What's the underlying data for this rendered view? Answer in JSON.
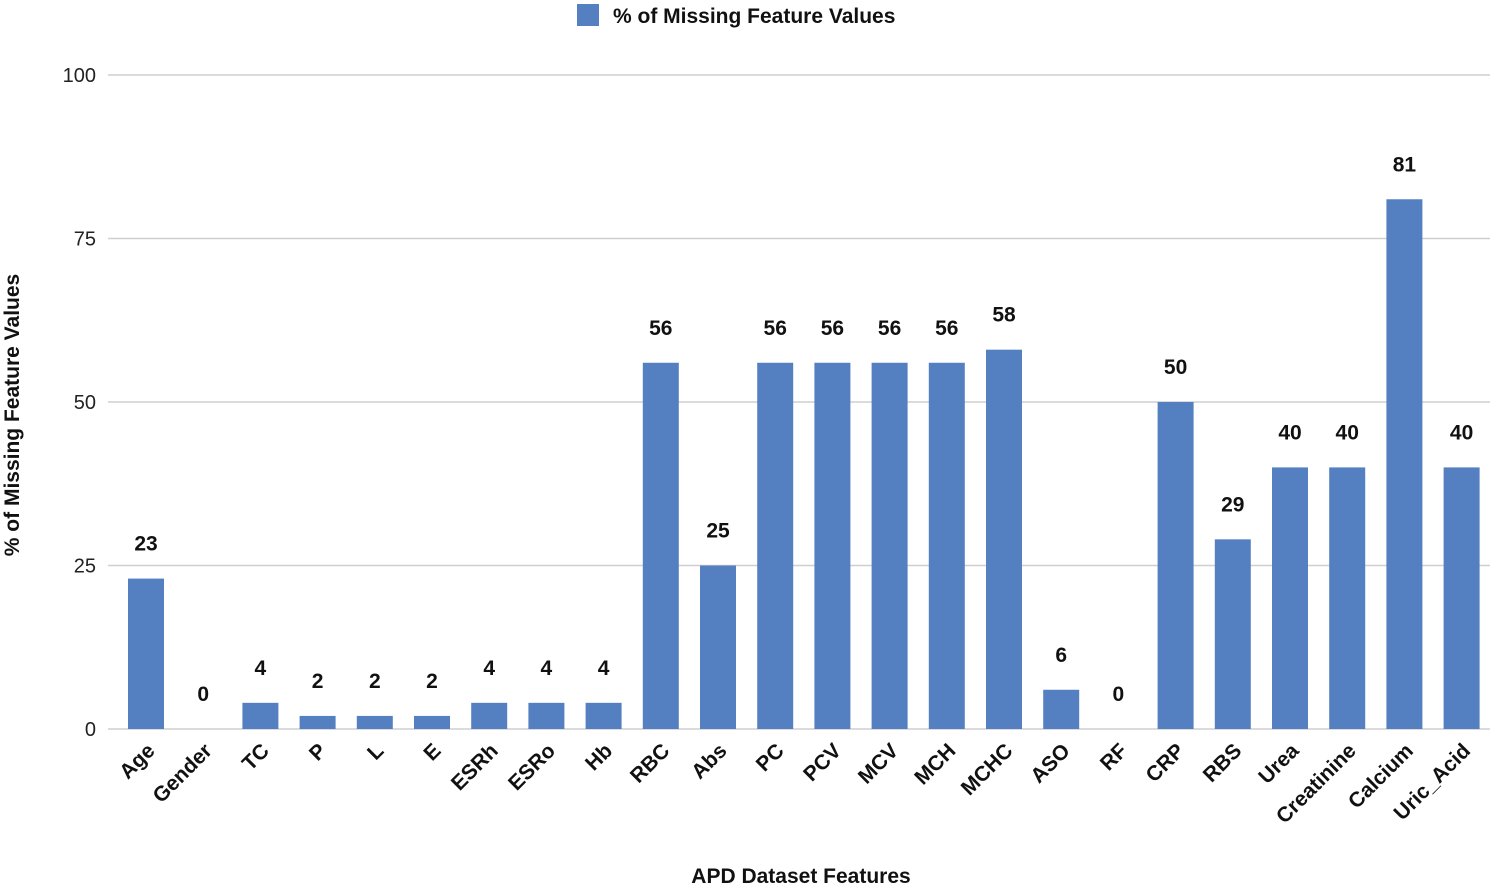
{
  "chart_data": {
    "type": "bar",
    "categories": [
      "Age",
      "Gender",
      "TC",
      "P",
      "L",
      "E",
      "ESRh",
      "ESRo",
      "Hb",
      "RBC",
      "Abs",
      "PC",
      "PCV",
      "MCV",
      "MCH",
      "MCHC",
      "ASO",
      "RF",
      "CRP",
      "RBS",
      "Urea",
      "Creatinine",
      "Calcium",
      "Uric_Acid"
    ],
    "series": [
      {
        "name": "% of Missing Feature Values",
        "values": [
          23,
          0,
          4,
          2,
          2,
          2,
          4,
          4,
          4,
          56,
          25,
          56,
          56,
          56,
          56,
          58,
          6,
          0,
          50,
          29,
          40,
          40,
          81,
          40
        ],
        "data_labels": [
          "23",
          "0",
          "4",
          "2",
          "2",
          "2",
          "4",
          "4",
          "4",
          "56",
          "25",
          "56",
          "56",
          "56",
          "56",
          "58",
          "6",
          "0",
          "50",
          "29",
          "40",
          "40",
          "81",
          "40"
        ]
      }
    ],
    "title": "",
    "xlabel": "APD Dataset Features",
    "ylabel": "% of Missing Feature Values",
    "ylim": [
      0,
      100
    ],
    "yticks": [
      "0",
      "25",
      "50",
      "75",
      "100"
    ],
    "grid": true,
    "legend_position": "top-center",
    "colors": {
      "bar": "#5480c2",
      "grid": "#cfcfcf"
    }
  }
}
